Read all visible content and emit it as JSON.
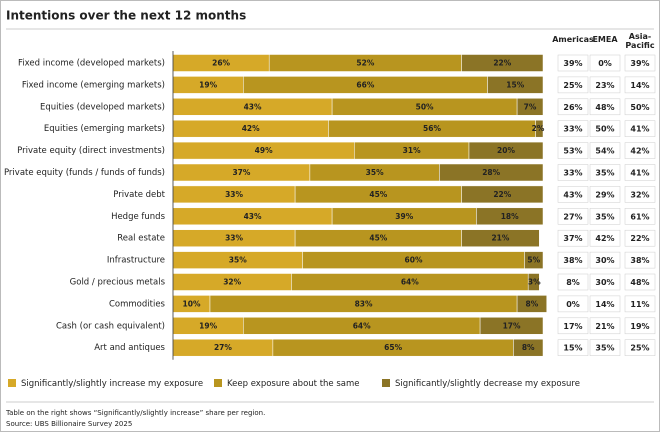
{
  "chart_data": {
    "type": "bar",
    "orientation": "horizontal",
    "stacked": true,
    "title": "Intentions over the next 12 months",
    "categories": [
      "Fixed income (developed markets)",
      "Fixed income (emerging markets)",
      "Equities (developed markets)",
      "Equities (emerging markets)",
      "Private equity (direct investments)",
      "Private equity (funds / funds of funds)",
      "Private debt",
      "Hedge funds",
      "Real estate",
      "Infrastructure",
      "Gold / precious metals",
      "Commodities",
      "Cash (or cash equivalent)",
      "Art and antiques"
    ],
    "series": [
      {
        "name": "Significantly/slightly increase my exposure",
        "color": "#d6a928",
        "values": [
          26,
          19,
          43,
          42,
          49,
          37,
          33,
          43,
          33,
          35,
          32,
          10,
          19,
          27
        ],
        "value_labels": [
          "26%",
          "19%",
          "43%",
          "42%",
          "49%",
          "37%",
          "33%",
          "43%",
          "33%",
          "35%",
          "32%",
          "10%",
          "19%",
          "27%"
        ]
      },
      {
        "name": "Keep exposure about the same",
        "color": "#b8951f",
        "values": [
          52,
          66,
          50,
          56,
          31,
          35,
          45,
          39,
          45,
          60,
          64,
          83,
          64,
          65
        ],
        "value_labels": [
          "52%",
          "66%",
          "50%",
          "56%",
          "31%",
          "35%",
          "45%",
          "39%",
          "45%",
          "60%",
          "64%",
          "83%",
          "64%",
          "65%"
        ]
      },
      {
        "name": "Significantly/slightly decrease my exposure",
        "color": "#8b7426",
        "values": [
          22,
          15,
          7,
          2,
          20,
          28,
          22,
          18,
          21,
          5,
          3,
          8,
          17,
          8
        ],
        "value_labels": [
          "22%",
          "15%",
          "7%",
          "2%",
          "20%",
          "28%",
          "22%",
          "18%",
          "21%",
          "5%",
          "3%",
          "8%",
          "17%",
          "8%"
        ]
      }
    ],
    "xlim": [
      0,
      100
    ]
  },
  "table": {
    "headers": [
      "Americas",
      "EMEA",
      "Asia-Pacific"
    ],
    "rows": [
      [
        "39%",
        "0%",
        "39%"
      ],
      [
        "25%",
        "23%",
        "14%"
      ],
      [
        "26%",
        "48%",
        "50%"
      ],
      [
        "33%",
        "50%",
        "41%"
      ],
      [
        "53%",
        "54%",
        "42%"
      ],
      [
        "33%",
        "35%",
        "41%"
      ],
      [
        "43%",
        "29%",
        "32%"
      ],
      [
        "27%",
        "35%",
        "61%"
      ],
      [
        "37%",
        "42%",
        "22%"
      ],
      [
        "38%",
        "30%",
        "38%"
      ],
      [
        "8%",
        "30%",
        "48%"
      ],
      [
        "0%",
        "14%",
        "11%"
      ],
      [
        "17%",
        "21%",
        "19%"
      ],
      [
        "15%",
        "35%",
        "25%"
      ]
    ]
  },
  "footnote": "Table on the right shows “Significantly/slightly increase” share per region.",
  "source": "Source: UBS Billionaire Survey 2025"
}
